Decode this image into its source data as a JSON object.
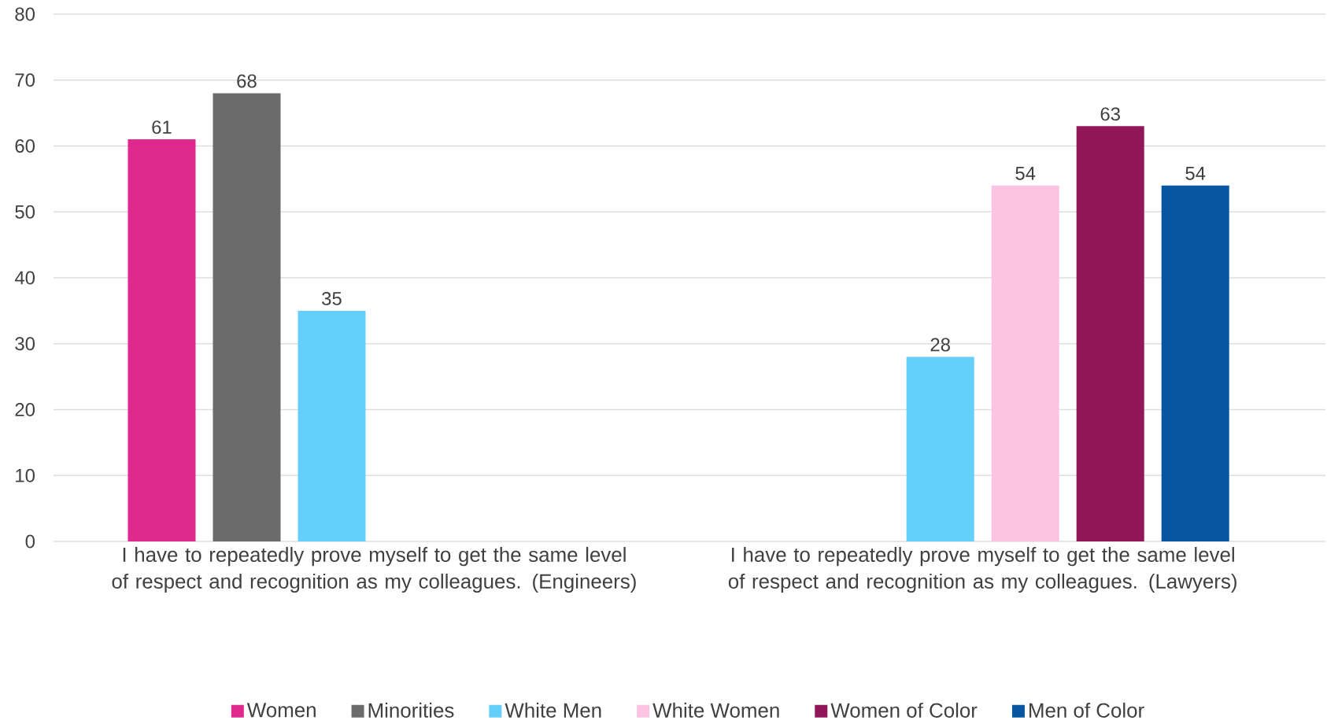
{
  "chart_data": {
    "type": "bar",
    "categories": [
      "I have to repeatedly prove myself to get the same level of respect and recognition as my colleagues.  (Engineers)",
      "I have to repeatedly prove myself to get the same level of respect and recognition as my colleagues. (Lawyers)"
    ],
    "series": [
      {
        "name": "Women",
        "color": "#e0298f",
        "values": [
          61,
          null
        ]
      },
      {
        "name": "Minorities",
        "color": "#6b6b6b",
        "values": [
          68,
          null
        ]
      },
      {
        "name": "White Men",
        "color": "#63cffa",
        "values": [
          35,
          28
        ]
      },
      {
        "name": "White Women",
        "color": "#fdc3e3",
        "values": [
          null,
          54
        ]
      },
      {
        "name": "Women of Color",
        "color": "#921759",
        "values": [
          null,
          63
        ]
      },
      {
        "name": "Men of Color",
        "color": "#0656a1",
        "values": [
          null,
          54
        ]
      }
    ],
    "ylim": [
      0,
      80
    ],
    "yticks": [
      0,
      10,
      20,
      30,
      40,
      50,
      60,
      70,
      80
    ],
    "grid": "y",
    "legend": "bottom",
    "data_labels": true
  }
}
